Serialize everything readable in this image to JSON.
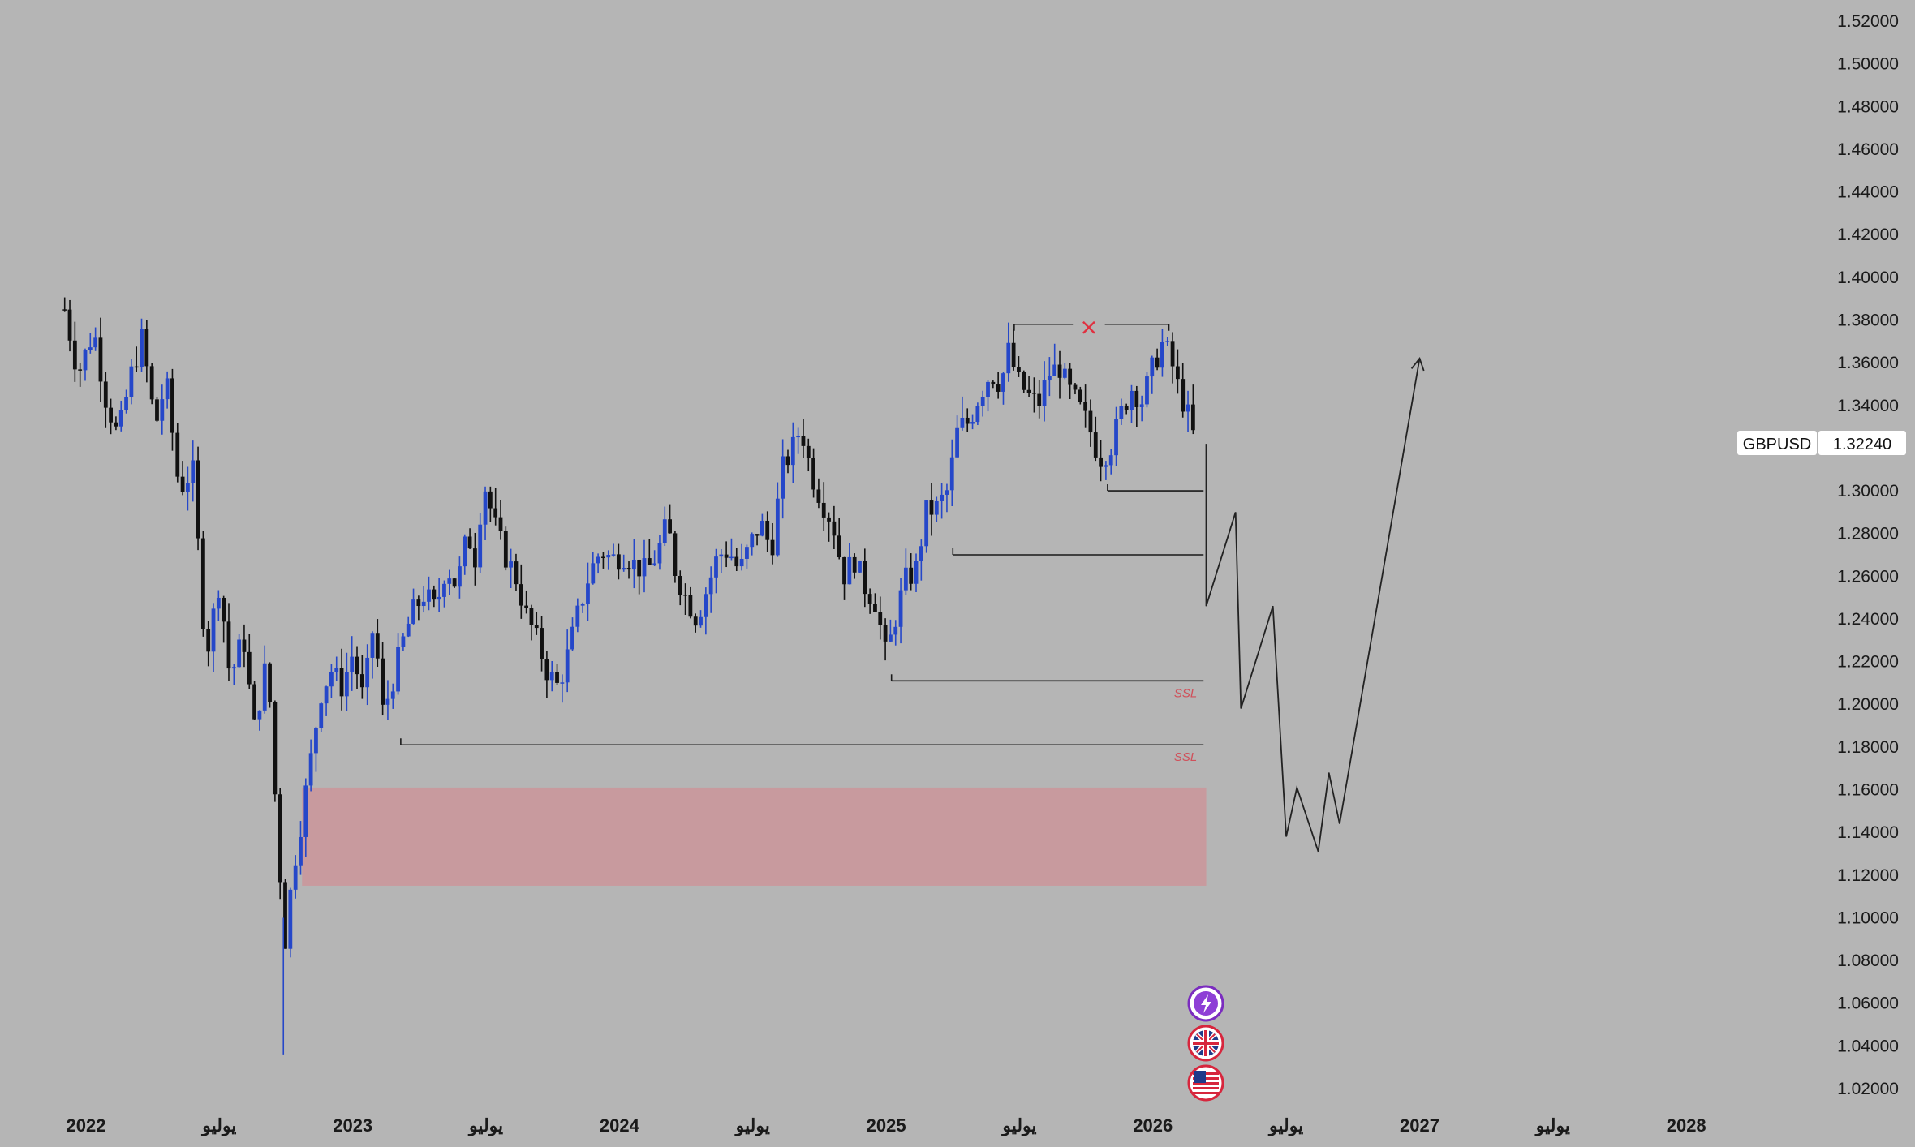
{
  "symbol": "GBPUSD",
  "last_price": "1.32240",
  "colors": {
    "background": "#b5b5b5",
    "bull": "#2547c9",
    "bear": "#111111",
    "zone": "#c89a9e",
    "ssl": "#d0505a",
    "marker": "#e03040"
  },
  "icons": [
    "lightning-icon",
    "uk-flag-icon",
    "us-flag-icon"
  ],
  "chart_data": {
    "type": "candlestick",
    "title": "",
    "xlabel": "",
    "ylabel": "",
    "ylim": [
      1.0,
      1.53
    ],
    "xlim": [
      2021.9,
      2028.2
    ],
    "grid": false,
    "y_ticks": [
      "1.52000",
      "1.50000",
      "1.48000",
      "1.46000",
      "1.44000",
      "1.42000",
      "1.40000",
      "1.38000",
      "1.36000",
      "1.34000",
      "1.32000",
      "1.30000",
      "1.28000",
      "1.26000",
      "1.24000",
      "1.22000",
      "1.20000",
      "1.18000",
      "1.16000",
      "1.14000",
      "1.12000",
      "1.10000",
      "1.08000",
      "1.06000",
      "1.04000",
      "1.02000"
    ],
    "x_ticks": [
      {
        "label": "2022",
        "x": 2022.0
      },
      {
        "label": "يوليو",
        "x": 2022.5
      },
      {
        "label": "2023",
        "x": 2023.0
      },
      {
        "label": "يوليو",
        "x": 2023.5
      },
      {
        "label": "2024",
        "x": 2024.0
      },
      {
        "label": "يوليو",
        "x": 2024.5
      },
      {
        "label": "2025",
        "x": 2025.0
      },
      {
        "label": "يوليو",
        "x": 2025.5
      },
      {
        "label": "2026",
        "x": 2026.0
      },
      {
        "label": "يوليو",
        "x": 2026.5
      },
      {
        "label": "2027",
        "x": 2027.0
      },
      {
        "label": "يوليو",
        "x": 2027.5
      },
      {
        "label": "2028",
        "x": 2028.0
      }
    ],
    "price_path": [
      [
        2021.92,
        1.385
      ],
      [
        2021.97,
        1.355
      ],
      [
        2022.03,
        1.375
      ],
      [
        2022.07,
        1.345
      ],
      [
        2022.12,
        1.325
      ],
      [
        2022.17,
        1.355
      ],
      [
        2022.21,
        1.372
      ],
      [
        2022.26,
        1.33
      ],
      [
        2022.3,
        1.352
      ],
      [
        2022.35,
        1.3
      ],
      [
        2022.4,
        1.31
      ],
      [
        2022.45,
        1.222
      ],
      [
        2022.5,
        1.258
      ],
      [
        2022.54,
        1.212
      ],
      [
        2022.59,
        1.232
      ],
      [
        2022.63,
        1.188
      ],
      [
        2022.68,
        1.222
      ],
      [
        2022.72,
        1.132
      ],
      [
        2022.75,
        1.085
      ],
      [
        2022.77,
        1.118
      ],
      [
        2022.8,
        1.14
      ],
      [
        2022.84,
        1.172
      ],
      [
        2022.88,
        1.205
      ],
      [
        2022.92,
        1.216
      ],
      [
        2022.96,
        1.208
      ],
      [
        2023.0,
        1.224
      ],
      [
        2023.04,
        1.202
      ],
      [
        2023.08,
        1.24
      ],
      [
        2023.11,
        1.196
      ],
      [
        2023.14,
        1.206
      ],
      [
        2023.18,
        1.226
      ],
      [
        2023.22,
        1.242
      ],
      [
        2023.27,
        1.252
      ],
      [
        2023.31,
        1.244
      ],
      [
        2023.35,
        1.265
      ],
      [
        2023.39,
        1.255
      ],
      [
        2023.43,
        1.28
      ],
      [
        2023.46,
        1.268
      ],
      [
        2023.49,
        1.305
      ],
      [
        2023.53,
        1.285
      ],
      [
        2023.57,
        1.27
      ],
      [
        2023.61,
        1.26
      ],
      [
        2023.65,
        1.242
      ],
      [
        2023.69,
        1.23
      ],
      [
        2023.73,
        1.215
      ],
      [
        2023.77,
        1.208
      ],
      [
        2023.81,
        1.225
      ],
      [
        2023.85,
        1.245
      ],
      [
        2023.89,
        1.262
      ],
      [
        2023.93,
        1.272
      ],
      [
        2023.97,
        1.268
      ],
      [
        2024.02,
        1.27
      ],
      [
        2024.06,
        1.265
      ],
      [
        2024.1,
        1.262
      ],
      [
        2024.14,
        1.27
      ],
      [
        2024.18,
        1.285
      ],
      [
        2024.21,
        1.262
      ],
      [
        2024.25,
        1.25
      ],
      [
        2024.29,
        1.24
      ],
      [
        2024.33,
        1.255
      ],
      [
        2024.37,
        1.27
      ],
      [
        2024.41,
        1.272
      ],
      [
        2024.45,
        1.262
      ],
      [
        2024.49,
        1.275
      ],
      [
        2024.53,
        1.285
      ],
      [
        2024.57,
        1.272
      ],
      [
        2024.61,
        1.31
      ],
      [
        2024.65,
        1.32
      ],
      [
        2024.68,
        1.33
      ],
      [
        2024.72,
        1.308
      ],
      [
        2024.76,
        1.295
      ],
      [
        2024.8,
        1.285
      ],
      [
        2024.84,
        1.26
      ],
      [
        2024.88,
        1.268
      ],
      [
        2024.92,
        1.255
      ],
      [
        2024.96,
        1.248
      ],
      [
        2025.0,
        1.222
      ],
      [
        2025.03,
        1.238
      ],
      [
        2025.07,
        1.258
      ],
      [
        2025.11,
        1.262
      ],
      [
        2025.15,
        1.29
      ],
      [
        2025.19,
        1.292
      ],
      [
        2025.23,
        1.3
      ],
      [
        2025.27,
        1.33
      ],
      [
        2025.31,
        1.332
      ],
      [
        2025.35,
        1.345
      ],
      [
        2025.39,
        1.355
      ],
      [
        2025.43,
        1.35
      ],
      [
        2025.46,
        1.366
      ],
      [
        2025.49,
        1.352
      ],
      [
        2025.53,
        1.345
      ],
      [
        2025.57,
        1.34
      ],
      [
        2025.61,
        1.355
      ],
      [
        2025.65,
        1.358
      ],
      [
        2025.68,
        1.348
      ],
      [
        2025.72,
        1.34
      ],
      [
        2025.76,
        1.33
      ],
      [
        2025.8,
        1.315
      ],
      [
        2025.84,
        1.32
      ],
      [
        2025.88,
        1.336
      ],
      [
        2025.92,
        1.348
      ],
      [
        2025.96,
        1.342
      ],
      [
        2026.0,
        1.358
      ],
      [
        2026.04,
        1.37
      ],
      [
        2026.07,
        1.36
      ],
      [
        2026.1,
        1.346
      ],
      [
        2026.13,
        1.336
      ],
      [
        2026.16,
        1.322
      ]
    ],
    "levels": [
      {
        "price": 1.378,
        "x_start": 2025.48,
        "x_end": 2026.06,
        "gap": [
          2025.7,
          2025.82
        ],
        "marker": "x"
      },
      {
        "price": 1.3,
        "x_start": 2025.83,
        "x_end": 2026.19
      },
      {
        "price": 1.27,
        "x_start": 2025.25,
        "x_end": 2026.19
      },
      {
        "price": 1.211,
        "x_start": 2025.02,
        "x_end": 2026.19,
        "label": "SSL"
      },
      {
        "price": 1.181,
        "x_start": 2023.18,
        "x_end": 2026.19,
        "label": "SSL"
      }
    ],
    "zone": {
      "x_start": 2022.81,
      "x_end": 2026.2,
      "y_top": 1.161,
      "y_bottom": 1.115
    },
    "projection": [
      [
        2026.2,
        1.322
      ],
      [
        2026.2,
        1.246
      ],
      [
        2026.31,
        1.29
      ],
      [
        2026.33,
        1.198
      ],
      [
        2026.45,
        1.246
      ],
      [
        2026.5,
        1.138
      ],
      [
        2026.54,
        1.161
      ],
      [
        2026.62,
        1.131
      ],
      [
        2026.66,
        1.168
      ],
      [
        2026.7,
        1.144
      ],
      [
        2027.0,
        1.362
      ]
    ]
  }
}
